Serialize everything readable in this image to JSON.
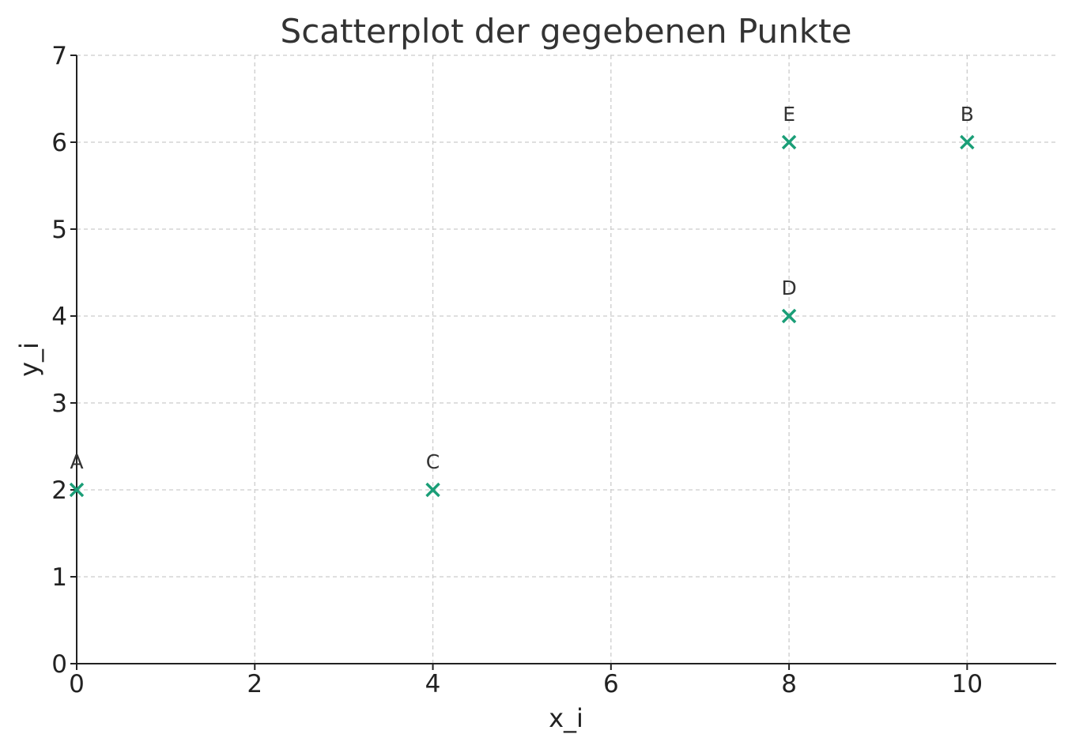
{
  "chart_data": {
    "type": "scatter",
    "title": "Scatterplot der gegebenen Punkte",
    "xlabel": "x_i",
    "ylabel": "y_i",
    "xlim": [
      0,
      11
    ],
    "ylim": [
      0,
      7
    ],
    "x_ticks": [
      "0",
      "2",
      "4",
      "6",
      "8",
      "10"
    ],
    "y_ticks": [
      "0",
      "1",
      "2",
      "3",
      "4",
      "5",
      "6",
      "7"
    ],
    "grid": true,
    "marker": "x",
    "marker_color": "#1a9e77",
    "points": [
      {
        "label": "A",
        "x": 0,
        "y": 2
      },
      {
        "label": "B",
        "x": 10,
        "y": 6
      },
      {
        "label": "C",
        "x": 4,
        "y": 2
      },
      {
        "label": "D",
        "x": 8,
        "y": 4
      },
      {
        "label": "E",
        "x": 8,
        "y": 6
      }
    ]
  }
}
